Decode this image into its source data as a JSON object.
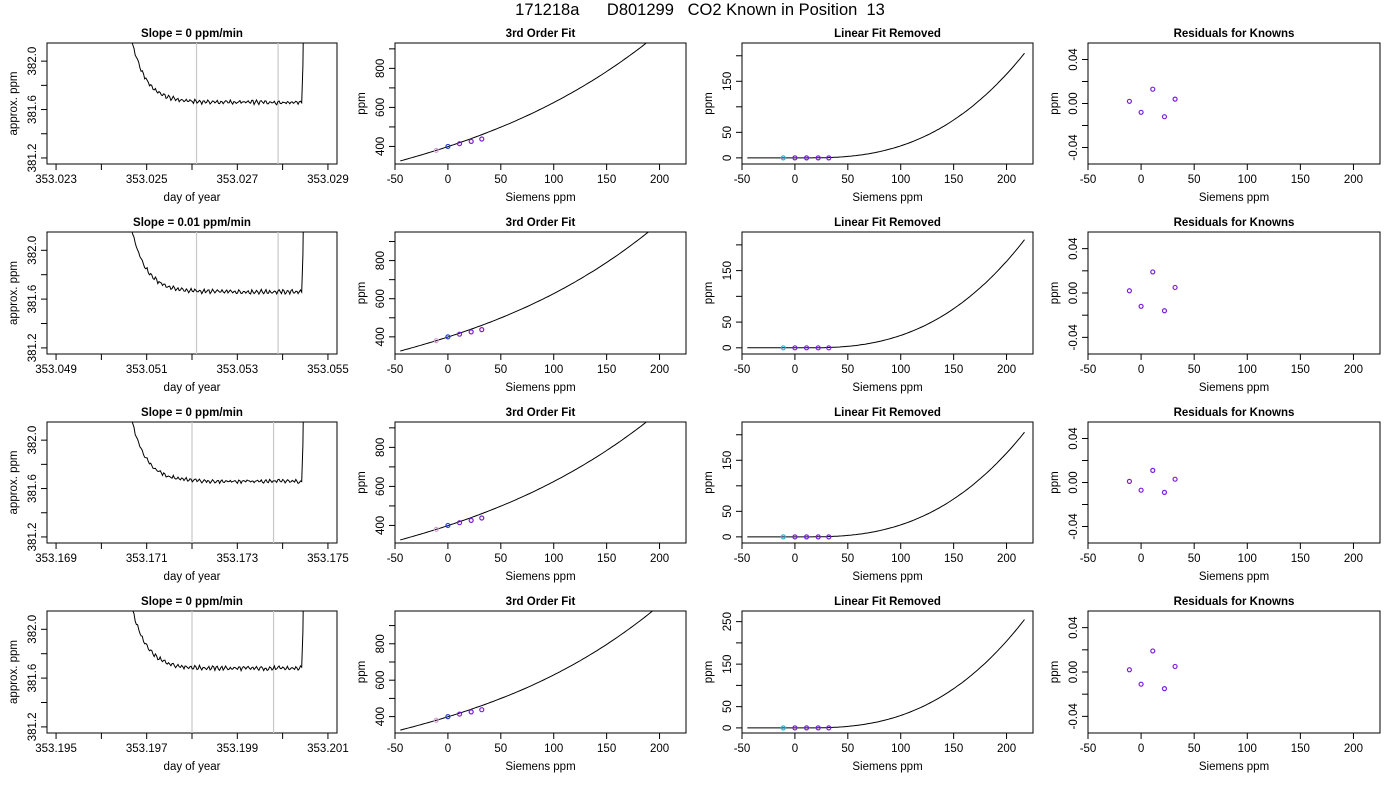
{
  "page": {
    "title": "171218a      D801299   CO2 Known in Position  13"
  },
  "colors": {
    "curve": "#000000",
    "window_line": "#c8c8c8",
    "point_purple": "#7a1fd6",
    "point_blue": "#1f3fd6",
    "point_cyan": "#22b8d8",
    "point_pink": "#d7a3d6",
    "trace_red_hint": "#c23b3b"
  },
  "chart_data": [
    {
      "type": "line",
      "row": 1,
      "title": "Slope =  0  ppm/min",
      "xlabel": "day of year",
      "ylabel": "approx. ppm",
      "xlim": [
        353.0228,
        353.0292
      ],
      "ylim": [
        381.15,
        382.15
      ],
      "xticks": [
        353.023,
        353.025,
        353.027,
        353.029
      ],
      "xtick_labels": [
        "353.023",
        "353.025",
        "353.027",
        "353.029"
      ],
      "xminor": [
        353.024,
        353.026,
        353.028
      ],
      "yticks": [
        381.2,
        381.6,
        382.0
      ],
      "ytick_labels": [
        "381.2",
        "381.6",
        "382.0"
      ],
      "yminor": [
        381.4,
        381.8
      ],
      "x_start": 353.0243,
      "x_end": 353.0285,
      "plateau": 381.66,
      "window": [
        353.0261,
        353.0279
      ]
    },
    {
      "type": "line",
      "title": "3rd Order Fit",
      "xlabel": "Siemens ppm",
      "ylabel": "ppm",
      "xlim": [
        -50,
        225
      ],
      "ylim": [
        310,
        930
      ],
      "xticks": [
        -50,
        0,
        50,
        100,
        150,
        200
      ],
      "xtick_labels": [
        "-50",
        "0",
        "50",
        "100",
        "150",
        "200"
      ],
      "yticks": [
        400,
        600,
        800
      ],
      "ytick_labels": [
        "400",
        "600",
        "800"
      ],
      "yminor": [
        500,
        700,
        900
      ],
      "curve": {
        "x0": -45,
        "x1": 217,
        "a": 380,
        "b": 1.7,
        "c": 0.0035,
        "d": 9.5e-06
      },
      "points": {
        "x": [
          -11,
          0,
          11,
          22,
          32
        ],
        "y": [
          380,
          400,
          414,
          426,
          438
        ]
      }
    },
    {
      "type": "line",
      "title": "Linear Fit Removed",
      "xlabel": "Siemens ppm",
      "ylabel": "ppm",
      "xlim": [
        -50,
        225
      ],
      "ylim": [
        -12,
        225
      ],
      "xticks": [
        -50,
        0,
        50,
        100,
        150,
        200
      ],
      "xtick_labels": [
        "-50",
        "0",
        "50",
        "100",
        "150",
        "200"
      ],
      "yticks": [
        0,
        50,
        150
      ],
      "ytick_labels": [
        "0",
        "50",
        "150"
      ],
      "yminor": [
        100,
        200
      ],
      "curve": {
        "x0": -45,
        "x1": 217,
        "peak": 205
      },
      "points": {
        "x": [
          -11,
          0,
          11,
          22,
          32
        ],
        "y": [
          0,
          0,
          0,
          0,
          0
        ]
      }
    },
    {
      "type": "scatter",
      "title": "Residuals for Knowns",
      "xlabel": "Siemens ppm",
      "ylabel": "ppm",
      "xlim": [
        -50,
        225
      ],
      "ylim": [
        -0.055,
        0.055
      ],
      "xticks": [
        -50,
        0,
        50,
        100,
        150,
        200
      ],
      "xtick_labels": [
        "-50",
        "0",
        "50",
        "100",
        "150",
        "200"
      ],
      "yticks": [
        -0.04,
        0.0,
        0.04
      ],
      "ytick_labels": [
        "-0.04",
        "0.00",
        "0.04"
      ],
      "yminor": [
        -0.02,
        0.02
      ],
      "points": {
        "x": [
          -11,
          0,
          11,
          22,
          32
        ],
        "y": [
          0.002,
          -0.008,
          0.013,
          -0.012,
          0.004
        ]
      }
    },
    {
      "type": "line",
      "row": 2,
      "title": "Slope =  0.01  ppm/min",
      "xlabel": "day of year",
      "ylabel": "approx. ppm",
      "xlim": [
        353.0488,
        353.0552
      ],
      "ylim": [
        381.15,
        382.15
      ],
      "xticks": [
        353.049,
        353.051,
        353.053,
        353.055
      ],
      "xtick_labels": [
        "353.049",
        "353.051",
        "353.053",
        "353.055"
      ],
      "xminor": [
        353.05,
        353.052,
        353.054
      ],
      "yticks": [
        381.2,
        381.6,
        382.0
      ],
      "ytick_labels": [
        "381.2",
        "381.6",
        "382.0"
      ],
      "yminor": [
        381.4,
        381.8
      ],
      "x_start": 353.0503,
      "x_end": 353.0545,
      "plateau": 381.66,
      "window": [
        353.0521,
        353.0539
      ]
    },
    {
      "type": "line",
      "title": "3rd Order Fit",
      "xlabel": "Siemens ppm",
      "ylabel": "ppm",
      "xlim": [
        -50,
        225
      ],
      "ylim": [
        310,
        950
      ],
      "xticks": [
        -50,
        0,
        50,
        100,
        150,
        200
      ],
      "xtick_labels": [
        "-50",
        "0",
        "50",
        "100",
        "150",
        "200"
      ],
      "yticks": [
        400,
        600,
        800
      ],
      "ytick_labels": [
        "400",
        "600",
        "800"
      ],
      "yminor": [
        500,
        700,
        900
      ],
      "curve": {
        "x0": -45,
        "x1": 217,
        "a": 380,
        "b": 1.7,
        "c": 0.0035,
        "d": 1.1e-05
      },
      "points": {
        "x": [
          -11,
          0,
          11,
          22,
          32
        ],
        "y": [
          380,
          400,
          414,
          426,
          438
        ]
      }
    },
    {
      "type": "line",
      "title": "Linear Fit Removed",
      "xlabel": "Siemens ppm",
      "ylabel": "ppm",
      "xlim": [
        -50,
        225
      ],
      "ylim": [
        -12,
        225
      ],
      "xticks": [
        -50,
        0,
        50,
        100,
        150,
        200
      ],
      "xtick_labels": [
        "-50",
        "0",
        "50",
        "100",
        "150",
        "200"
      ],
      "yticks": [
        0,
        50,
        150
      ],
      "ytick_labels": [
        "0",
        "50",
        "150"
      ],
      "yminor": [
        100,
        200
      ],
      "curve": {
        "x0": -45,
        "x1": 217,
        "peak": 210
      },
      "points": {
        "x": [
          -11,
          0,
          11,
          22,
          32
        ],
        "y": [
          0,
          0,
          0,
          0,
          0
        ]
      }
    },
    {
      "type": "scatter",
      "title": "Residuals for Knowns",
      "xlabel": "Siemens ppm",
      "ylabel": "ppm",
      "xlim": [
        -50,
        225
      ],
      "ylim": [
        -0.055,
        0.055
      ],
      "xticks": [
        -50,
        0,
        50,
        100,
        150,
        200
      ],
      "xtick_labels": [
        "-50",
        "0",
        "50",
        "100",
        "150",
        "200"
      ],
      "yticks": [
        -0.04,
        0.0,
        0.04
      ],
      "ytick_labels": [
        "-0.04",
        "0.00",
        "0.04"
      ],
      "yminor": [
        -0.02,
        0.02
      ],
      "points": {
        "x": [
          -11,
          0,
          11,
          22,
          32
        ],
        "y": [
          0.002,
          -0.012,
          0.019,
          -0.016,
          0.005
        ]
      }
    },
    {
      "type": "line",
      "row": 3,
      "title": "Slope =  0  ppm/min",
      "xlabel": "day of year",
      "ylabel": "approx. ppm",
      "xlim": [
        353.1688,
        353.1752
      ],
      "ylim": [
        381.15,
        382.15
      ],
      "xticks": [
        353.169,
        353.171,
        353.173,
        353.175
      ],
      "xtick_labels": [
        "353.169",
        "353.171",
        "353.173",
        "353.175"
      ],
      "xminor": [
        353.17,
        353.172,
        353.174
      ],
      "yticks": [
        381.2,
        381.6,
        382.0
      ],
      "ytick_labels": [
        "381.2",
        "381.6",
        "382.0"
      ],
      "yminor": [
        381.4,
        381.8
      ],
      "x_start": 353.1703,
      "x_end": 353.1745,
      "plateau": 381.66,
      "window": [
        353.172,
        353.1738
      ]
    },
    {
      "type": "line",
      "title": "3rd Order Fit",
      "xlabel": "Siemens ppm",
      "ylabel": "ppm",
      "xlim": [
        -50,
        225
      ],
      "ylim": [
        310,
        930
      ],
      "xticks": [
        -50,
        0,
        50,
        100,
        150,
        200
      ],
      "xtick_labels": [
        "-50",
        "0",
        "50",
        "100",
        "150",
        "200"
      ],
      "yticks": [
        400,
        600,
        800
      ],
      "ytick_labels": [
        "400",
        "600",
        "800"
      ],
      "yminor": [
        500,
        700,
        900
      ],
      "curve": {
        "x0": -45,
        "x1": 217,
        "a": 380,
        "b": 1.7,
        "c": 0.0035,
        "d": 9.5e-06
      },
      "points": {
        "x": [
          -11,
          0,
          11,
          22,
          32
        ],
        "y": [
          380,
          400,
          414,
          426,
          438
        ]
      }
    },
    {
      "type": "line",
      "title": "Linear Fit Removed",
      "xlabel": "Siemens ppm",
      "ylabel": "ppm",
      "xlim": [
        -50,
        225
      ],
      "ylim": [
        -12,
        225
      ],
      "xticks": [
        -50,
        0,
        50,
        100,
        150,
        200
      ],
      "xtick_labels": [
        "-50",
        "0",
        "50",
        "100",
        "150",
        "200"
      ],
      "yticks": [
        0,
        50,
        150
      ],
      "ytick_labels": [
        "0",
        "50",
        "150"
      ],
      "yminor": [
        100,
        200
      ],
      "curve": {
        "x0": -45,
        "x1": 217,
        "peak": 205
      },
      "points": {
        "x": [
          -11,
          0,
          11,
          22,
          32
        ],
        "y": [
          0,
          0,
          0,
          0,
          0
        ]
      }
    },
    {
      "type": "scatter",
      "title": "Residuals for Knowns",
      "xlabel": "Siemens ppm",
      "ylabel": "ppm",
      "xlim": [
        -50,
        225
      ],
      "ylim": [
        -0.055,
        0.055
      ],
      "xticks": [
        -50,
        0,
        50,
        100,
        150,
        200
      ],
      "xtick_labels": [
        "-50",
        "0",
        "50",
        "100",
        "150",
        "200"
      ],
      "yticks": [
        -0.04,
        0.0,
        0.04
      ],
      "ytick_labels": [
        "-0.04",
        "0.00",
        "0.04"
      ],
      "yminor": [
        -0.02,
        0.02
      ],
      "points": {
        "x": [
          -11,
          0,
          11,
          22,
          32
        ],
        "y": [
          0.001,
          -0.007,
          0.011,
          -0.009,
          0.003
        ]
      }
    },
    {
      "type": "line",
      "row": 4,
      "title": "Slope =  0  ppm/min",
      "xlabel": "day of year",
      "ylabel": "approx. ppm",
      "xlim": [
        353.1948,
        353.2012
      ],
      "ylim": [
        381.15,
        382.15
      ],
      "xticks": [
        353.195,
        353.197,
        353.199,
        353.201
      ],
      "xtick_labels": [
        "353.195",
        "353.197",
        "353.199",
        "353.201"
      ],
      "xminor": [
        353.196,
        353.198,
        353.2
      ],
      "yticks": [
        381.2,
        381.6,
        382.0
      ],
      "ytick_labels": [
        "381.2",
        "381.6",
        "382.0"
      ],
      "yminor": [
        381.4,
        381.8
      ],
      "x_start": 353.1963,
      "x_end": 353.2005,
      "plateau": 381.68,
      "window": [
        353.198,
        353.1998
      ]
    },
    {
      "type": "line",
      "title": "3rd Order Fit",
      "xlabel": "Siemens ppm",
      "ylabel": "ppm",
      "xlim": [
        -50,
        225
      ],
      "ylim": [
        310,
        980
      ],
      "xticks": [
        -50,
        0,
        50,
        100,
        150,
        200
      ],
      "xtick_labels": [
        "-50",
        "0",
        "50",
        "100",
        "150",
        "200"
      ],
      "yticks": [
        400,
        600,
        800
      ],
      "ytick_labels": [
        "400",
        "600",
        "800"
      ],
      "yminor": [
        500,
        700,
        900
      ],
      "curve": {
        "x0": -45,
        "x1": 217,
        "a": 380,
        "b": 1.7,
        "c": 0.0035,
        "d": 1.25e-05
      },
      "points": {
        "x": [
          -11,
          0,
          11,
          22,
          32
        ],
        "y": [
          380,
          400,
          414,
          426,
          438
        ]
      }
    },
    {
      "type": "line",
      "title": "Linear Fit Removed",
      "xlabel": "Siemens ppm",
      "ylabel": "ppm",
      "xlim": [
        -50,
        225
      ],
      "ylim": [
        -12,
        275
      ],
      "xticks": [
        -50,
        0,
        50,
        100,
        150,
        200
      ],
      "xtick_labels": [
        "-50",
        "0",
        "50",
        "100",
        "150",
        "200"
      ],
      "yticks": [
        0,
        50,
        150,
        250
      ],
      "ytick_labels": [
        "0",
        "50",
        "150",
        "250"
      ],
      "yminor": [
        100,
        200
      ],
      "curve": {
        "x0": -45,
        "x1": 217,
        "peak": 255
      },
      "points": {
        "x": [
          -11,
          0,
          11,
          22,
          32
        ],
        "y": [
          0,
          0,
          0,
          0,
          0
        ]
      }
    },
    {
      "type": "scatter",
      "title": "Residuals for Knowns",
      "xlabel": "Siemens ppm",
      "ylabel": "ppm",
      "xlim": [
        -50,
        225
      ],
      "ylim": [
        -0.055,
        0.055
      ],
      "xticks": [
        -50,
        0,
        50,
        100,
        150,
        200
      ],
      "xtick_labels": [
        "-50",
        "0",
        "50",
        "100",
        "150",
        "200"
      ],
      "yticks": [
        -0.04,
        0.0,
        0.04
      ],
      "ytick_labels": [
        "-0.04",
        "0.00",
        "0.04"
      ],
      "yminor": [
        -0.02,
        0.02
      ],
      "points": {
        "x": [
          -11,
          0,
          11,
          22,
          32
        ],
        "y": [
          0.002,
          -0.011,
          0.019,
          -0.015,
          0.005
        ]
      }
    }
  ]
}
